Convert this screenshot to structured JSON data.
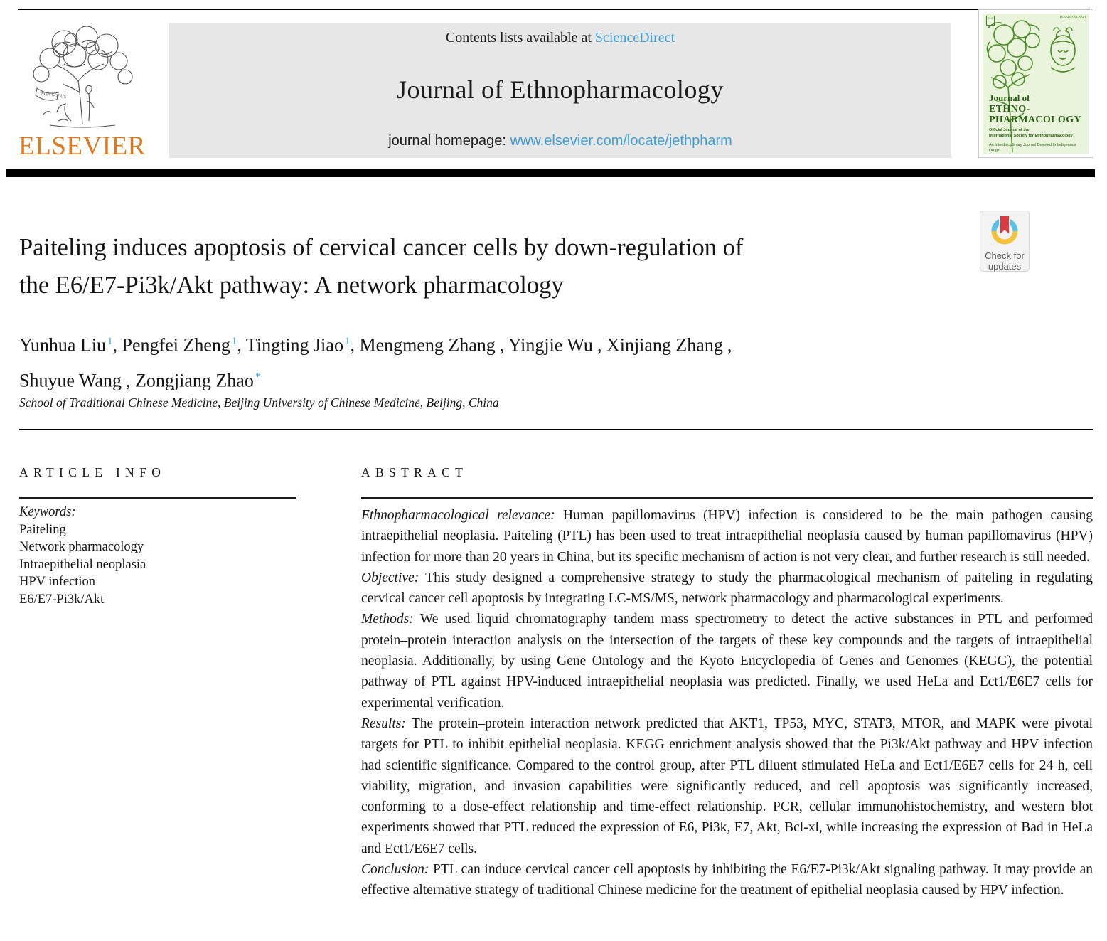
{
  "header": {
    "contents_prefix": "Contents lists available at ",
    "sciencedirect_link": "ScienceDirect",
    "journal_title": "Journal of Ethnopharmacology",
    "homepage_prefix": "journal homepage: ",
    "homepage_url": "www.elsevier.com/locate/jethpharm",
    "elsevier_wordmark": "ELSEVIER",
    "elsevier_motto": "NON SOLUS",
    "cover": {
      "issn": "ISSN 0378-8741",
      "mini_logo": "ELS",
      "title_line1": "Journal of",
      "title_line2": "ETHNO-",
      "title_line3": "PHARMACOLOGY",
      "subtitle_line1": "Official Journal of the",
      "subtitle_line2": "International Society for Ethnopharmacology",
      "subtitle_line3": "An Interdisciplinary Journal Devoted to Indigenous Drugs"
    }
  },
  "badge": {
    "line1": "Check for",
    "line2": "updates"
  },
  "article": {
    "title_line1": "Paiteling induces apoptosis of cervical cancer cells by down-regulation of",
    "title_line2": "the E6/E7-Pi3k/Akt pathway: A network pharmacology",
    "authors_line1": [
      {
        "name": "Yunhua Liu",
        "sup": "1",
        "comma": ","
      },
      {
        "name": "Pengfei Zheng",
        "sup": "1",
        "comma": ","
      },
      {
        "name": "Tingting Jiao",
        "sup": "1",
        "comma": ","
      },
      {
        "name": "Mengmeng Zhang",
        "sup": "",
        "comma": ","
      },
      {
        "name": "Yingjie Wu",
        "sup": "",
        "comma": ","
      },
      {
        "name": "Xinjiang Zhang",
        "sup": "",
        "comma": ","
      }
    ],
    "authors_line2": [
      {
        "name": "Shuyue Wang",
        "sup": "",
        "comma": ","
      },
      {
        "name": "Zongjiang Zhao",
        "sup": "*",
        "comma": ""
      }
    ],
    "affiliation": "School of Traditional Chinese Medicine, Beijing University of Chinese Medicine, Beijing, China"
  },
  "article_info": {
    "heading": "ARTICLE INFO",
    "keywords_label": "Keywords:",
    "keywords": [
      "Paiteling",
      "Network pharmacology",
      "Intraepithelial neoplasia",
      "HPV infection",
      "E6/E7-Pi3k/Akt"
    ]
  },
  "abstract": {
    "heading": "ABSTRACT",
    "sections": [
      {
        "label": "Ethnopharmacological relevance:",
        "text": "Human papillomavirus (HPV) infection is considered to be the main pathogen causing intraepithelial neoplasia. Paiteling (PTL) has been used to treat intraepithelial neoplasia caused by human papillomavirus (HPV) infection for more than 20 years in China, but its specific mechanism of action is not very clear, and further research is still needed."
      },
      {
        "label": "Objective:",
        "text": "This study designed a comprehensive strategy to study the pharmacological mechanism of paiteling in regulating cervical cancer cell apoptosis by integrating LC-MS/MS, network pharmacology and pharmacological experiments."
      },
      {
        "label": "Methods:",
        "text": "We used liquid chromatography–tandem mass spectrometry to detect the active substances in PTL and performed protein–protein interaction analysis on the intersection of the targets of these key compounds and the targets of intraepithelial neoplasia. Additionally, by using Gene Ontology and the Kyoto Encyclopedia of Genes and Genomes (KEGG), the potential pathway of PTL against HPV-induced intraepithelial neoplasia was predicted. Finally, we used HeLa and Ect1/E6E7 cells for experimental verification."
      },
      {
        "label": "Results:",
        "text": "The protein–protein interaction network predicted that AKT1, TP53, MYC, STAT3, MTOR, and MAPK were pivotal targets for PTL to inhibit epithelial neoplasia. KEGG enrichment analysis showed that the Pi3k/Akt pathway and HPV infection had scientific significance. Compared to the control group, after PTL diluent stimulated HeLa and Ect1/E6E7 cells for 24 h, cell viability, migration, and invasion capabilities were significantly reduced, and cell apoptosis was significantly increased, conforming to a dose-effect relationship and time-effect relationship. PCR, cellular immunohistochemistry, and western blot experiments showed that PTL reduced the expression of E6, Pi3k, E7, Akt, Bcl-xl, while increasing the expression of Bad in HeLa and Ect1/E6E7 cells."
      },
      {
        "label": "Conclusion:",
        "text": "PTL can induce cervical cancer cell apoptosis by inhibiting the E6/E7-Pi3k/Akt signaling pathway. It may provide an effective alternative strategy of traditional Chinese medicine for the treatment of epithelial neoplasia caused by HPV infection."
      }
    ]
  },
  "colors": {
    "link_blue": "#3e9fd4",
    "elsevier_orange": "#dd7a1f",
    "banner_gray": "#e7e7e7",
    "cover_green_bg": "#eaf3dc",
    "cover_green_ink": "#2a5e14",
    "badge_red": "#da3b3f",
    "badge_blue": "#57c1e8",
    "badge_yellow": "#f2c23e"
  }
}
